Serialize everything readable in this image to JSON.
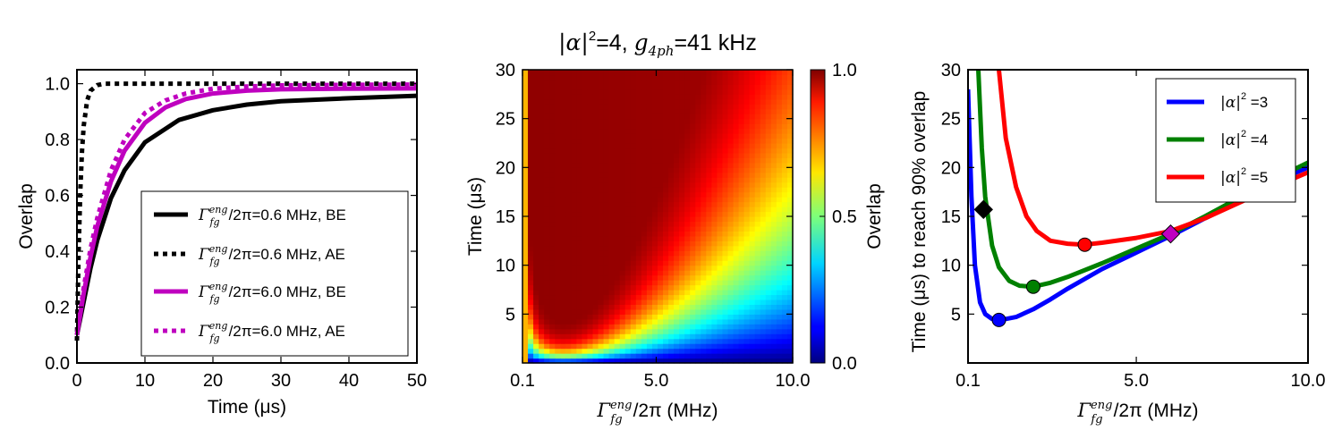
{
  "chart_data": [
    {
      "type": "line",
      "xlabel": "Time (μs)",
      "ylabel": "Overlap",
      "xlim": [
        0,
        50
      ],
      "ylim": [
        0,
        1.05
      ],
      "xticks": [
        "0",
        "10",
        "20",
        "30",
        "40",
        "50"
      ],
      "yticks": [
        "0.0",
        "0.2",
        "0.4",
        "0.6",
        "0.8",
        "1.0"
      ],
      "legend_position": "lower-right",
      "series": [
        {
          "name": "Γfg^eng/2π=0.6 MHz, BE",
          "label_tail": "/2π=0.6 MHz, BE",
          "color": "#000000",
          "style": "solid",
          "x": [
            0,
            1,
            2,
            3,
            5,
            7,
            10,
            15,
            20,
            25,
            30,
            40,
            50
          ],
          "y": [
            0.1,
            0.22,
            0.34,
            0.44,
            0.59,
            0.69,
            0.79,
            0.87,
            0.905,
            0.925,
            0.937,
            0.948,
            0.957
          ]
        },
        {
          "name": "Γfg^eng/2π=0.6 MHz, AE",
          "label_tail": "/2π=0.6 MHz, AE",
          "color": "#000000",
          "style": "dotted",
          "x": [
            0,
            0.25,
            0.5,
            0.75,
            1,
            1.5,
            2,
            3,
            4,
            5,
            10,
            20,
            30,
            40,
            50
          ],
          "y": [
            0.08,
            0.4,
            0.62,
            0.76,
            0.85,
            0.94,
            0.975,
            0.995,
            1.0,
            1.0,
            1.0,
            1.0,
            1.0,
            1.0,
            1.0
          ]
        },
        {
          "name": "Γfg^eng/2π=6.0 MHz, BE",
          "label_tail": "/2π=6.0 MHz, BE",
          "color": "#bf00bf",
          "style": "solid",
          "x": [
            0,
            1,
            2,
            3,
            5,
            7,
            10,
            13,
            16,
            20,
            25,
            30,
            40,
            50
          ],
          "y": [
            0.1,
            0.25,
            0.38,
            0.49,
            0.65,
            0.76,
            0.86,
            0.915,
            0.945,
            0.965,
            0.975,
            0.98,
            0.982,
            0.983
          ]
        },
        {
          "name": "Γfg^eng/2π=6.0 MHz, AE",
          "label_tail": "/2π=6.0 MHz, AE",
          "color": "#bf00bf",
          "style": "dotted",
          "x": [
            0,
            1,
            2,
            3,
            5,
            7,
            10,
            13,
            16,
            20,
            25,
            30,
            40,
            50
          ],
          "y": [
            0.1,
            0.27,
            0.41,
            0.52,
            0.69,
            0.8,
            0.895,
            0.94,
            0.965,
            0.982,
            0.99,
            0.994,
            0.996,
            0.997
          ]
        }
      ]
    },
    {
      "type": "heatmap",
      "title_prefix": "=4, ",
      "title_suffix": "=41 kHz",
      "xlabel_tail": "/2π (MHz)",
      "ylabel": "Time (μs)",
      "colorbar_label": "Overlap",
      "xlim": [
        0.1,
        10.0
      ],
      "ylim": [
        0,
        30
      ],
      "xticks": [
        "0.1",
        "5.0",
        "10.0"
      ],
      "yticks": [
        "5",
        "10",
        "15",
        "20",
        "25",
        "30"
      ],
      "colorbar_ticks": [
        "0.0",
        "0.5",
        "1.0"
      ],
      "model": "overlap = 1 - exp(-t / T(Γ)), T minimal near Γ≈1.4 MHz; colormap jet"
    },
    {
      "type": "line",
      "xlabel_tail": "/2π (MHz)",
      "ylabel": "Time (μs) to reach 90% overlap",
      "xlim": [
        0.1,
        10.0
      ],
      "ylim": [
        0,
        30
      ],
      "xticks": [
        "0.1",
        "5.0",
        "10.0"
      ],
      "yticks": [
        "5",
        "10",
        "15",
        "20",
        "25",
        "30"
      ],
      "legend_position": "top-right",
      "series": [
        {
          "name": "|α|² =3",
          "label_tail": " =3",
          "color": "#0000ff",
          "x": [
            0.1,
            0.2,
            0.3,
            0.45,
            0.6,
            0.8,
            1.0,
            1.2,
            1.5,
            2.0,
            2.5,
            3.0,
            4.0,
            5.0,
            6.0,
            7.0,
            8.0,
            9.0,
            10.0
          ],
          "y": [
            28,
            17,
            10,
            6.2,
            5.0,
            4.5,
            4.4,
            4.5,
            4.7,
            5.5,
            6.5,
            7.6,
            9.6,
            11.3,
            13.0,
            14.8,
            16.5,
            18.5,
            20.0
          ],
          "marker": {
            "x": 1.0,
            "y": 4.4,
            "shape": "circle"
          }
        },
        {
          "name": "|α|² =4",
          "label_tail": " =4",
          "color": "#008000",
          "x": [
            0.4,
            0.5,
            0.6,
            0.8,
            1.0,
            1.3,
            1.6,
            2.0,
            2.5,
            3.0,
            4.0,
            5.0,
            6.0,
            7.0,
            8.0,
            9.0,
            10.0
          ],
          "y": [
            30,
            22,
            17,
            12,
            9.8,
            8.4,
            7.9,
            7.8,
            8.2,
            8.8,
            10.2,
            11.7,
            13.2,
            15.0,
            16.9,
            18.8,
            20.5
          ],
          "marker": {
            "x": 2.0,
            "y": 7.8,
            "shape": "circle"
          }
        },
        {
          "name": "|α|² =5",
          "label_tail": " =5",
          "color": "#ff0000",
          "x": [
            1.0,
            1.2,
            1.5,
            1.8,
            2.1,
            2.5,
            3.0,
            3.5,
            4.0,
            5.0,
            6.0,
            7.0,
            8.0,
            9.0,
            10.0
          ],
          "y": [
            30,
            23,
            18,
            15,
            13.5,
            12.5,
            12.2,
            12.1,
            12.3,
            12.8,
            13.5,
            14.8,
            16.4,
            18.0,
            19.5
          ],
          "marker": {
            "x": 3.5,
            "y": 12.1,
            "shape": "circle"
          }
        }
      ],
      "extra_markers": [
        {
          "x": 0.55,
          "y": 15.7,
          "shape": "diamond",
          "color": "#000000"
        },
        {
          "x": 6.0,
          "y": 13.2,
          "shape": "diamond",
          "color": "#bf00bf"
        }
      ]
    }
  ]
}
